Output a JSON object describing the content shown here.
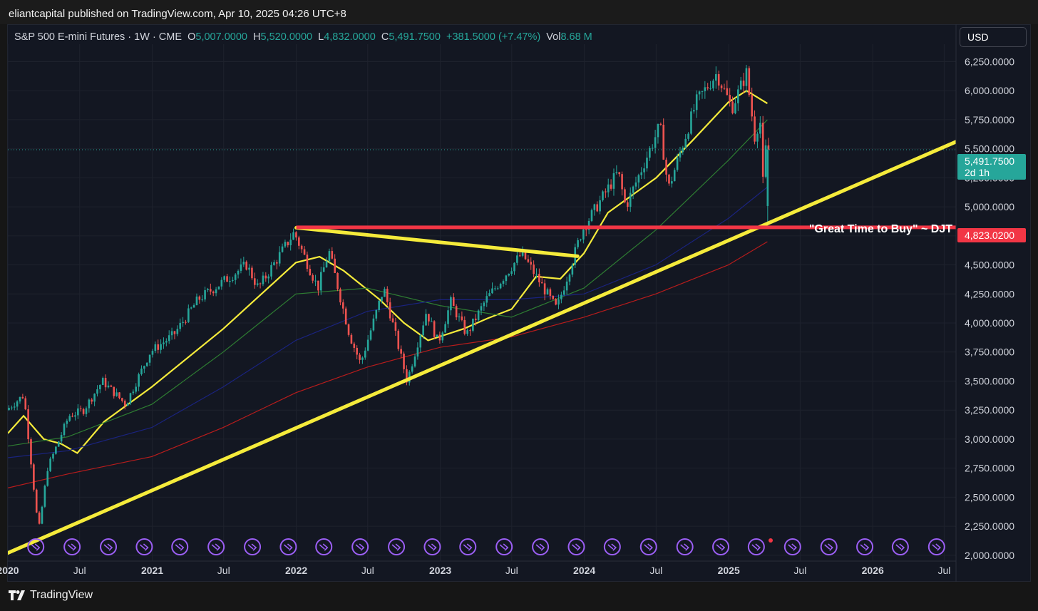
{
  "header": {
    "published_by": "eliantcapital published on TradingView.com, Apr 10, 2025 04:26 UTC+8"
  },
  "legend": {
    "symbol": "S&P 500 E-mini Futures · 1W · CME",
    "open_label": "O",
    "open": "5,007.0000",
    "high_label": "H",
    "high": "5,520.0000",
    "low_label": "L",
    "low": "4,832.0000",
    "close_label": "C",
    "close": "5,491.7500",
    "change": "+381.5000 (+7.47%)",
    "vol_label": "Vol",
    "vol": "8.68 M"
  },
  "currency_button": "USD",
  "price_badge": {
    "price": "5,491.7500",
    "countdown": "2d 1h",
    "color": "#26a69a"
  },
  "level_badge": {
    "price": "4,823.0200",
    "color": "#f23645"
  },
  "annotation": "\"Great Time to Buy\" ~ DJT",
  "footer": {
    "brand": "TradingView"
  },
  "chart_data": {
    "type": "line",
    "title": "S&P 500 E-mini Futures · 1W · CME",
    "xlabel": "",
    "ylabel": "",
    "ylim": [
      1950,
      6400
    ],
    "xlim": [
      "2020-01-01",
      "2026-07-31"
    ],
    "y_ticks": [
      "6,250.0000",
      "6,000.0000",
      "5,750.0000",
      "5,500.0000",
      "5,250.0000",
      "5,000.0000",
      "4,750.0000",
      "4,500.0000",
      "4,250.0000",
      "4,000.0000",
      "3,750.0000",
      "3,500.0000",
      "3,250.0000",
      "3,000.0000",
      "2,750.0000",
      "2,500.0000",
      "2,250.0000",
      "2,000.0000"
    ],
    "x_ticks": [
      {
        "label": "2020",
        "date": "2020-01-01",
        "bold": true
      },
      {
        "label": "Jul",
        "date": "2020-07-01",
        "bold": false
      },
      {
        "label": "2021",
        "date": "2021-01-01",
        "bold": true
      },
      {
        "label": "Jul",
        "date": "2021-07-01",
        "bold": false
      },
      {
        "label": "2022",
        "date": "2022-01-01",
        "bold": true
      },
      {
        "label": "Jul",
        "date": "2022-07-01",
        "bold": false
      },
      {
        "label": "2023",
        "date": "2023-01-01",
        "bold": true
      },
      {
        "label": "Jul",
        "date": "2023-07-01",
        "bold": false
      },
      {
        "label": "2024",
        "date": "2024-01-01",
        "bold": true
      },
      {
        "label": "Jul",
        "date": "2024-07-01",
        "bold": false
      },
      {
        "label": "2025",
        "date": "2025-01-01",
        "bold": true
      },
      {
        "label": "Jul",
        "date": "2025-07-01",
        "bold": false
      },
      {
        "label": "2026",
        "date": "2026-01-01",
        "bold": true
      },
      {
        "label": "Jul",
        "date": "2026-07-01",
        "bold": false
      }
    ],
    "grid": true,
    "price_path": [
      [
        "2020-01-01",
        3250
      ],
      [
        "2020-02-15",
        3380
      ],
      [
        "2020-03-23",
        2200
      ],
      [
        "2020-04-15",
        2750
      ],
      [
        "2020-06-08",
        3200
      ],
      [
        "2020-07-15",
        3250
      ],
      [
        "2020-09-01",
        3500
      ],
      [
        "2020-10-30",
        3300
      ],
      [
        "2020-12-31",
        3750
      ],
      [
        "2021-03-01",
        3900
      ],
      [
        "2021-05-01",
        4200
      ],
      [
        "2021-07-01",
        4350
      ],
      [
        "2021-09-01",
        4500
      ],
      [
        "2021-10-01",
        4300
      ],
      [
        "2021-12-31",
        4780
      ],
      [
        "2022-03-01",
        4300
      ],
      [
        "2022-03-29",
        4620
      ],
      [
        "2022-05-20",
        3900
      ],
      [
        "2022-06-17",
        3650
      ],
      [
        "2022-08-15",
        4300
      ],
      [
        "2022-10-13",
        3500
      ],
      [
        "2022-12-01",
        4100
      ],
      [
        "2022-12-31",
        3830
      ],
      [
        "2023-02-01",
        4180
      ],
      [
        "2023-03-13",
        3900
      ],
      [
        "2023-05-01",
        4200
      ],
      [
        "2023-07-31",
        4600
      ],
      [
        "2023-10-27",
        4120
      ],
      [
        "2023-12-31",
        4800
      ],
      [
        "2024-03-31",
        5300
      ],
      [
        "2024-04-19",
        5000
      ],
      [
        "2024-07-15",
        5700
      ],
      [
        "2024-08-05",
        5150
      ],
      [
        "2024-10-15",
        5900
      ],
      [
        "2024-12-06",
        6150
      ],
      [
        "2025-01-13",
        5850
      ],
      [
        "2025-02-19",
        6150
      ],
      [
        "2025-03-13",
        5580
      ],
      [
        "2025-03-25",
        5800
      ],
      [
        "2025-04-07",
        4840
      ],
      [
        "2025-04-09",
        5492
      ]
    ],
    "series": [
      {
        "name": "",
        "color": "#f5eb3b",
        "values": [
          [
            "2020-01-01",
            3050
          ],
          [
            "2020-02-10",
            3200
          ],
          [
            "2020-04-01",
            3000
          ],
          [
            "2020-05-15",
            2960
          ],
          [
            "2020-06-25",
            2880
          ],
          [
            "2020-09-01",
            3150
          ],
          [
            "2020-12-31",
            3450
          ],
          [
            "2021-06-30",
            3950
          ],
          [
            "2021-12-31",
            4520
          ],
          [
            "2022-03-01",
            4570
          ],
          [
            "2022-05-01",
            4450
          ],
          [
            "2022-08-01",
            4200
          ],
          [
            "2022-10-01",
            4000
          ],
          [
            "2022-12-01",
            3850
          ],
          [
            "2023-03-01",
            3950
          ],
          [
            "2023-05-01",
            4040
          ],
          [
            "2023-07-01",
            4120
          ],
          [
            "2023-09-01",
            4400
          ],
          [
            "2023-11-01",
            4380
          ],
          [
            "2023-12-31",
            4600
          ],
          [
            "2024-03-01",
            4950
          ],
          [
            "2024-07-01",
            5250
          ],
          [
            "2024-10-01",
            5570
          ],
          [
            "2024-12-31",
            5900
          ],
          [
            "2025-02-15",
            6000
          ],
          [
            "2025-04-09",
            5890
          ]
        ]
      },
      {
        "name": "",
        "color": "#2e7d32",
        "values": [
          [
            "2020-01-01",
            2940
          ],
          [
            "2020-06-01",
            3020
          ],
          [
            "2020-12-31",
            3300
          ],
          [
            "2021-06-30",
            3750
          ],
          [
            "2021-12-31",
            4250
          ],
          [
            "2022-06-30",
            4300
          ],
          [
            "2022-12-31",
            4150
          ],
          [
            "2023-06-30",
            4050
          ],
          [
            "2023-12-31",
            4300
          ],
          [
            "2024-06-30",
            4800
          ],
          [
            "2024-12-31",
            5400
          ],
          [
            "2025-04-09",
            5750
          ]
        ]
      },
      {
        "name": "",
        "color": "#1a237e",
        "values": [
          [
            "2020-01-01",
            2840
          ],
          [
            "2020-06-01",
            2900
          ],
          [
            "2020-12-31",
            3100
          ],
          [
            "2021-06-30",
            3450
          ],
          [
            "2021-12-31",
            3850
          ],
          [
            "2022-06-30",
            4100
          ],
          [
            "2022-12-31",
            4200
          ],
          [
            "2023-06-30",
            4200
          ],
          [
            "2023-12-31",
            4250
          ],
          [
            "2024-06-30",
            4500
          ],
          [
            "2024-12-31",
            4900
          ],
          [
            "2025-04-09",
            5170
          ]
        ]
      },
      {
        "name": "",
        "color": "#b71c1c",
        "values": [
          [
            "2020-01-01",
            2580
          ],
          [
            "2020-06-01",
            2700
          ],
          [
            "2020-12-31",
            2850
          ],
          [
            "2021-06-30",
            3100
          ],
          [
            "2021-12-31",
            3400
          ],
          [
            "2022-06-30",
            3620
          ],
          [
            "2022-12-31",
            3790
          ],
          [
            "2023-06-30",
            3880
          ],
          [
            "2023-12-31",
            4050
          ],
          [
            "2024-06-30",
            4250
          ],
          [
            "2024-12-31",
            4500
          ],
          [
            "2025-04-09",
            4700
          ]
        ]
      }
    ],
    "trendlines": [
      {
        "name": "rising-support",
        "color": "#f5eb3b",
        "from": [
          "2020-01-01",
          2020
        ],
        "to": [
          "2026-07-31",
          5560
        ]
      },
      {
        "name": "falling-wedge-top",
        "color": "#f5eb3b",
        "from": [
          "2022-01-01",
          4820
        ],
        "to": [
          "2023-12-15",
          4575
        ]
      }
    ],
    "horizontal_level": {
      "value": 4823.02,
      "from": "2022-01-01",
      "color": "#f23645"
    },
    "current_price_line": {
      "value": 5491.75
    },
    "event_markers": [
      "2020-03-01",
      "2020-06-01",
      "2020-09-01",
      "2020-12-01",
      "2021-03-01",
      "2021-06-01",
      "2021-09-01",
      "2021-12-01",
      "2022-03-01",
      "2022-06-01",
      "2022-09-01",
      "2022-12-01",
      "2023-03-01",
      "2023-06-01",
      "2023-09-01",
      "2023-12-01",
      "2024-03-01",
      "2024-06-01",
      "2024-09-01",
      "2024-12-01",
      "2025-03-01",
      "2025-06-01",
      "2025-09-01",
      "2025-12-01",
      "2026-03-01",
      "2026-06-01"
    ]
  }
}
